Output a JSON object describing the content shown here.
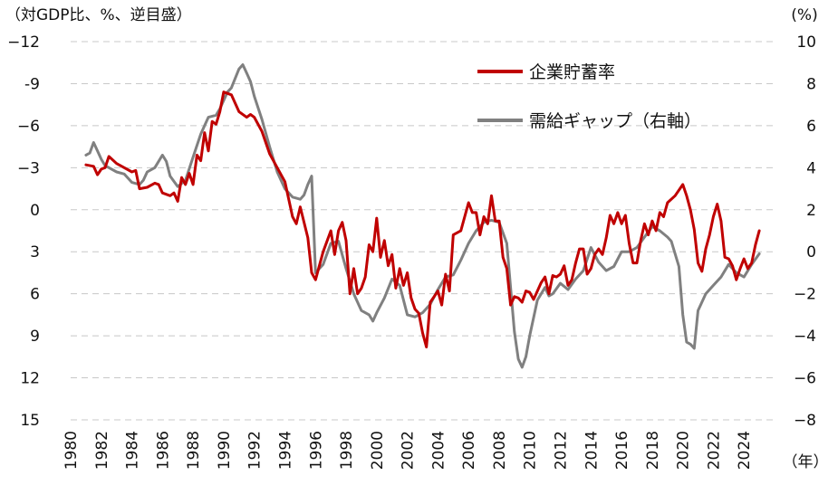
{
  "chart_data": {
    "type": "line",
    "left_axis_label": "（対GDP比、%、逆目盛）",
    "right_axis_label": "(%)",
    "x_axis_unit_label": "（年）",
    "left_axis": {
      "ticks": [
        -12,
        -9,
        -6,
        -3,
        0,
        3,
        6,
        9,
        12,
        15
      ],
      "tick_labels": [
        "−12",
        "-9",
        "−6",
        "−3",
        "0",
        "3",
        "6",
        "9",
        "12",
        "15"
      ],
      "ylim": [
        -12,
        15
      ],
      "inverted": true
    },
    "right_axis": {
      "ticks": [
        10,
        8,
        6,
        4,
        2,
        0,
        -2,
        -4,
        -6,
        -8
      ],
      "tick_labels": [
        "10",
        "8",
        "6",
        "4",
        "2",
        "0",
        "−2",
        "−4",
        "−6",
        "−8"
      ],
      "ylim": [
        -8,
        10
      ]
    },
    "x_ticks": [
      "1980",
      "1982",
      "1984",
      "1986",
      "1988",
      "1990",
      "1992",
      "1994",
      "1996",
      "1998",
      "2000",
      "2002",
      "2004",
      "2006",
      "2008",
      "2010",
      "2012",
      "2014",
      "2016",
      "2018",
      "2020",
      "2022",
      "2024"
    ],
    "xlim": [
      1980,
      2026
    ],
    "grid": true,
    "legend_position": "top-right",
    "series": [
      {
        "name": "企業貯蓄率",
        "axis": "left",
        "color": "#c00000",
        "points": [
          [
            1981.0,
            -3.2
          ],
          [
            1981.5,
            -3.1
          ],
          [
            1981.75,
            -2.5
          ],
          [
            1982.0,
            -2.9
          ],
          [
            1982.25,
            -3.0
          ],
          [
            1982.5,
            -3.8
          ],
          [
            1983.0,
            -3.3
          ],
          [
            1983.5,
            -3.0
          ],
          [
            1984.0,
            -2.7
          ],
          [
            1984.25,
            -2.8
          ],
          [
            1984.5,
            -1.5
          ],
          [
            1985.0,
            -1.6
          ],
          [
            1985.5,
            -1.9
          ],
          [
            1985.75,
            -1.8
          ],
          [
            1986.0,
            -1.2
          ],
          [
            1986.5,
            -1.0
          ],
          [
            1986.75,
            -1.2
          ],
          [
            1987.0,
            -0.6
          ],
          [
            1987.25,
            -2.3
          ],
          [
            1987.5,
            -1.8
          ],
          [
            1987.75,
            -2.6
          ],
          [
            1988.0,
            -1.8
          ],
          [
            1988.25,
            -3.9
          ],
          [
            1988.5,
            -3.5
          ],
          [
            1988.75,
            -5.5
          ],
          [
            1989.0,
            -4.2
          ],
          [
            1989.25,
            -6.3
          ],
          [
            1989.5,
            -6.1
          ],
          [
            1989.75,
            -7.0
          ],
          [
            1990.0,
            -8.4
          ],
          [
            1990.5,
            -8.2
          ],
          [
            1991.0,
            -7.0
          ],
          [
            1991.5,
            -6.6
          ],
          [
            1991.75,
            -6.8
          ],
          [
            1992.0,
            -6.6
          ],
          [
            1992.5,
            -5.6
          ],
          [
            1993.0,
            -4.0
          ],
          [
            1993.5,
            -3.0
          ],
          [
            1994.0,
            -2.0
          ],
          [
            1994.5,
            0.5
          ],
          [
            1994.75,
            1.0
          ],
          [
            1995.0,
            -0.2
          ],
          [
            1995.5,
            2.0
          ],
          [
            1995.75,
            4.5
          ],
          [
            1996.0,
            5.0
          ],
          [
            1996.5,
            3.0
          ],
          [
            1997.0,
            1.5
          ],
          [
            1997.25,
            3.2
          ],
          [
            1997.5,
            1.5
          ],
          [
            1997.75,
            0.9
          ],
          [
            1998.0,
            2.2
          ],
          [
            1998.25,
            6.0
          ],
          [
            1998.5,
            4.2
          ],
          [
            1998.75,
            6.0
          ],
          [
            1999.0,
            5.6
          ],
          [
            1999.25,
            4.8
          ],
          [
            1999.5,
            2.5
          ],
          [
            1999.75,
            3.0
          ],
          [
            2000.0,
            0.6
          ],
          [
            2000.25,
            3.4
          ],
          [
            2000.5,
            2.2
          ],
          [
            2000.75,
            4.0
          ],
          [
            2001.0,
            3.2
          ],
          [
            2001.25,
            5.6
          ],
          [
            2001.5,
            4.2
          ],
          [
            2001.75,
            5.4
          ],
          [
            2002.0,
            4.5
          ],
          [
            2002.25,
            6.3
          ],
          [
            2002.5,
            7.1
          ],
          [
            2002.75,
            7.4
          ],
          [
            2003.0,
            8.8
          ],
          [
            2003.25,
            9.8
          ],
          [
            2003.5,
            6.6
          ],
          [
            2003.75,
            6.2
          ],
          [
            2004.0,
            5.8
          ],
          [
            2004.25,
            6.8
          ],
          [
            2004.5,
            4.6
          ],
          [
            2004.75,
            5.8
          ],
          [
            2005.0,
            1.8
          ],
          [
            2005.5,
            1.5
          ],
          [
            2006.0,
            -0.5
          ],
          [
            2006.25,
            0.2
          ],
          [
            2006.5,
            0.2
          ],
          [
            2006.75,
            1.8
          ],
          [
            2007.0,
            0.5
          ],
          [
            2007.25,
            1.0
          ],
          [
            2007.5,
            -1.0
          ],
          [
            2007.75,
            0.8
          ],
          [
            2008.0,
            0.8
          ],
          [
            2008.25,
            3.4
          ],
          [
            2008.5,
            4.2
          ],
          [
            2008.75,
            6.8
          ],
          [
            2009.0,
            6.2
          ],
          [
            2009.25,
            6.3
          ],
          [
            2009.5,
            6.6
          ],
          [
            2009.75,
            5.8
          ],
          [
            2010.0,
            5.9
          ],
          [
            2010.25,
            6.4
          ],
          [
            2010.5,
            5.8
          ],
          [
            2010.75,
            5.2
          ],
          [
            2011.0,
            4.8
          ],
          [
            2011.25,
            6.0
          ],
          [
            2011.5,
            4.7
          ],
          [
            2011.75,
            4.8
          ],
          [
            2012.0,
            4.6
          ],
          [
            2012.25,
            4.0
          ],
          [
            2012.5,
            5.4
          ],
          [
            2012.75,
            5.0
          ],
          [
            2013.0,
            3.8
          ],
          [
            2013.25,
            2.8
          ],
          [
            2013.5,
            2.8
          ],
          [
            2013.75,
            4.6
          ],
          [
            2014.0,
            4.2
          ],
          [
            2014.25,
            3.2
          ],
          [
            2014.5,
            2.8
          ],
          [
            2014.75,
            3.2
          ],
          [
            2015.0,
            2.0
          ],
          [
            2015.25,
            0.4
          ],
          [
            2015.5,
            1.0
          ],
          [
            2015.75,
            0.2
          ],
          [
            2016.0,
            1.0
          ],
          [
            2016.25,
            0.4
          ],
          [
            2016.5,
            2.4
          ],
          [
            2016.75,
            3.8
          ],
          [
            2017.0,
            3.8
          ],
          [
            2017.25,
            2.2
          ],
          [
            2017.5,
            1.0
          ],
          [
            2017.75,
            1.8
          ],
          [
            2018.0,
            0.8
          ],
          [
            2018.25,
            1.5
          ],
          [
            2018.5,
            0.2
          ],
          [
            2018.75,
            0.5
          ],
          [
            2019.0,
            -0.5
          ],
          [
            2019.5,
            -1.0
          ],
          [
            2020.0,
            -1.8
          ],
          [
            2020.25,
            -1.0
          ],
          [
            2020.5,
            0.0
          ],
          [
            2020.75,
            1.4
          ],
          [
            2021.0,
            3.8
          ],
          [
            2021.25,
            4.4
          ],
          [
            2021.5,
            2.8
          ],
          [
            2021.75,
            1.8
          ],
          [
            2022.0,
            0.5
          ],
          [
            2022.25,
            -0.4
          ],
          [
            2022.5,
            0.8
          ],
          [
            2022.75,
            3.4
          ],
          [
            2023.0,
            3.5
          ],
          [
            2023.25,
            4.0
          ],
          [
            2023.5,
            5.0
          ],
          [
            2023.75,
            4.2
          ],
          [
            2024.0,
            3.5
          ],
          [
            2024.25,
            4.2
          ],
          [
            2024.5,
            3.8
          ],
          [
            2024.75,
            2.5
          ],
          [
            2025.0,
            1.5
          ]
        ]
      },
      {
        "name": "需給ギャップ（右軸）",
        "axis": "right",
        "color": "#808080",
        "points": [
          [
            1981.0,
            4.6
          ],
          [
            1981.25,
            4.7
          ],
          [
            1981.5,
            5.2
          ],
          [
            1981.75,
            4.8
          ],
          [
            1982.0,
            4.4
          ],
          [
            1982.25,
            4.1
          ],
          [
            1982.5,
            4.0
          ],
          [
            1983.0,
            3.8
          ],
          [
            1983.5,
            3.7
          ],
          [
            1983.75,
            3.5
          ],
          [
            1984.0,
            3.3
          ],
          [
            1984.5,
            3.2
          ],
          [
            1984.75,
            3.4
          ],
          [
            1985.0,
            3.8
          ],
          [
            1985.5,
            4.0
          ],
          [
            1986.0,
            4.6
          ],
          [
            1986.25,
            4.3
          ],
          [
            1986.5,
            3.6
          ],
          [
            1987.0,
            3.1
          ],
          [
            1987.5,
            3.4
          ],
          [
            1988.0,
            4.5
          ],
          [
            1988.5,
            5.6
          ],
          [
            1988.75,
            6.0
          ],
          [
            1989.0,
            6.4
          ],
          [
            1989.5,
            6.5
          ],
          [
            1989.75,
            6.8
          ],
          [
            1990.0,
            7.2
          ],
          [
            1990.25,
            7.6
          ],
          [
            1990.5,
            7.8
          ],
          [
            1991.0,
            8.7
          ],
          [
            1991.25,
            8.9
          ],
          [
            1991.5,
            8.5
          ],
          [
            1991.75,
            8.1
          ],
          [
            1992.0,
            7.4
          ],
          [
            1992.5,
            6.3
          ],
          [
            1993.0,
            5.0
          ],
          [
            1993.5,
            3.8
          ],
          [
            1994.0,
            3.0
          ],
          [
            1994.5,
            2.6
          ],
          [
            1995.0,
            2.5
          ],
          [
            1995.25,
            2.7
          ],
          [
            1995.5,
            3.2
          ],
          [
            1995.75,
            3.6
          ],
          [
            1996.0,
            -1.0
          ],
          [
            1996.5,
            -0.6
          ],
          [
            1997.0,
            0.4
          ],
          [
            1997.5,
            0.5
          ],
          [
            1998.0,
            -0.8
          ],
          [
            1998.5,
            -2.0
          ],
          [
            1999.0,
            -2.8
          ],
          [
            1999.5,
            -3.0
          ],
          [
            1999.75,
            -3.3
          ],
          [
            2000.0,
            -2.9
          ],
          [
            2000.5,
            -2.2
          ],
          [
            2001.0,
            -1.3
          ],
          [
            2001.5,
            -1.6
          ],
          [
            2002.0,
            -3.0
          ],
          [
            2002.5,
            -3.1
          ],
          [
            2003.0,
            -2.9
          ],
          [
            2003.5,
            -2.5
          ],
          [
            2004.0,
            -1.8
          ],
          [
            2004.5,
            -1.2
          ],
          [
            2005.0,
            -1.1
          ],
          [
            2005.5,
            -0.4
          ],
          [
            2006.0,
            0.4
          ],
          [
            2006.5,
            1.0
          ],
          [
            2007.0,
            1.4
          ],
          [
            2007.5,
            1.5
          ],
          [
            2008.0,
            1.4
          ],
          [
            2008.5,
            0.4
          ],
          [
            2009.0,
            -3.8
          ],
          [
            2009.25,
            -5.1
          ],
          [
            2009.5,
            -5.5
          ],
          [
            2009.75,
            -5.0
          ],
          [
            2010.0,
            -4.0
          ],
          [
            2010.5,
            -2.3
          ],
          [
            2011.0,
            -1.7
          ],
          [
            2011.25,
            -2.1
          ],
          [
            2011.5,
            -2.0
          ],
          [
            2012.0,
            -1.5
          ],
          [
            2012.5,
            -1.8
          ],
          [
            2013.0,
            -1.3
          ],
          [
            2013.5,
            -0.9
          ],
          [
            2014.0,
            0.2
          ],
          [
            2014.5,
            -0.5
          ],
          [
            2015.0,
            -0.9
          ],
          [
            2015.5,
            -0.7
          ],
          [
            2016.0,
            0.0
          ],
          [
            2016.5,
            0.0
          ],
          [
            2017.0,
            0.2
          ],
          [
            2017.5,
            0.7
          ],
          [
            2018.0,
            1.2
          ],
          [
            2018.5,
            1.0
          ],
          [
            2019.0,
            0.7
          ],
          [
            2019.25,
            0.5
          ],
          [
            2019.75,
            -0.7
          ],
          [
            2020.0,
            -3.0
          ],
          [
            2020.25,
            -4.3
          ],
          [
            2020.5,
            -4.4
          ],
          [
            2020.75,
            -4.6
          ],
          [
            2021.0,
            -2.8
          ],
          [
            2021.5,
            -2.0
          ],
          [
            2022.0,
            -1.6
          ],
          [
            2022.5,
            -1.2
          ],
          [
            2023.0,
            -0.6
          ],
          [
            2023.5,
            -1.0
          ],
          [
            2024.0,
            -1.2
          ],
          [
            2024.5,
            -0.6
          ],
          [
            2025.0,
            -0.1
          ]
        ]
      }
    ]
  }
}
